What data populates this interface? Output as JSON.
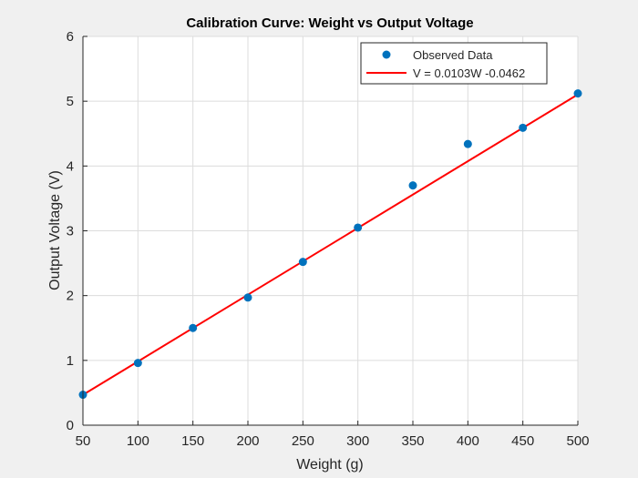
{
  "chart_data": {
    "type": "scatter",
    "title": "Calibration Curve: Weight vs Output Voltage",
    "xlabel": "Weight (g)",
    "ylabel": "Output Voltage (V)",
    "xlim": [
      50,
      500
    ],
    "ylim": [
      0,
      6
    ],
    "xticks": [
      50,
      100,
      150,
      200,
      250,
      300,
      350,
      400,
      450,
      500
    ],
    "yticks": [
      0,
      1,
      2,
      3,
      4,
      5,
      6
    ],
    "grid": true,
    "legend_placement": "top-right",
    "series": [
      {
        "name": "Observed Data",
        "kind": "scatter",
        "color": "#0072BD",
        "x": [
          50,
          100,
          150,
          200,
          250,
          300,
          350,
          400,
          450,
          500
        ],
        "y": [
          0.47,
          0.96,
          1.5,
          1.97,
          2.52,
          3.05,
          3.7,
          4.34,
          4.59,
          5.12
        ]
      },
      {
        "name": "V = 0.0103W -0.0462",
        "kind": "line",
        "color": "#FF0000",
        "slope": 0.0103,
        "intercept": -0.0462,
        "x": [
          50,
          500
        ]
      }
    ]
  }
}
